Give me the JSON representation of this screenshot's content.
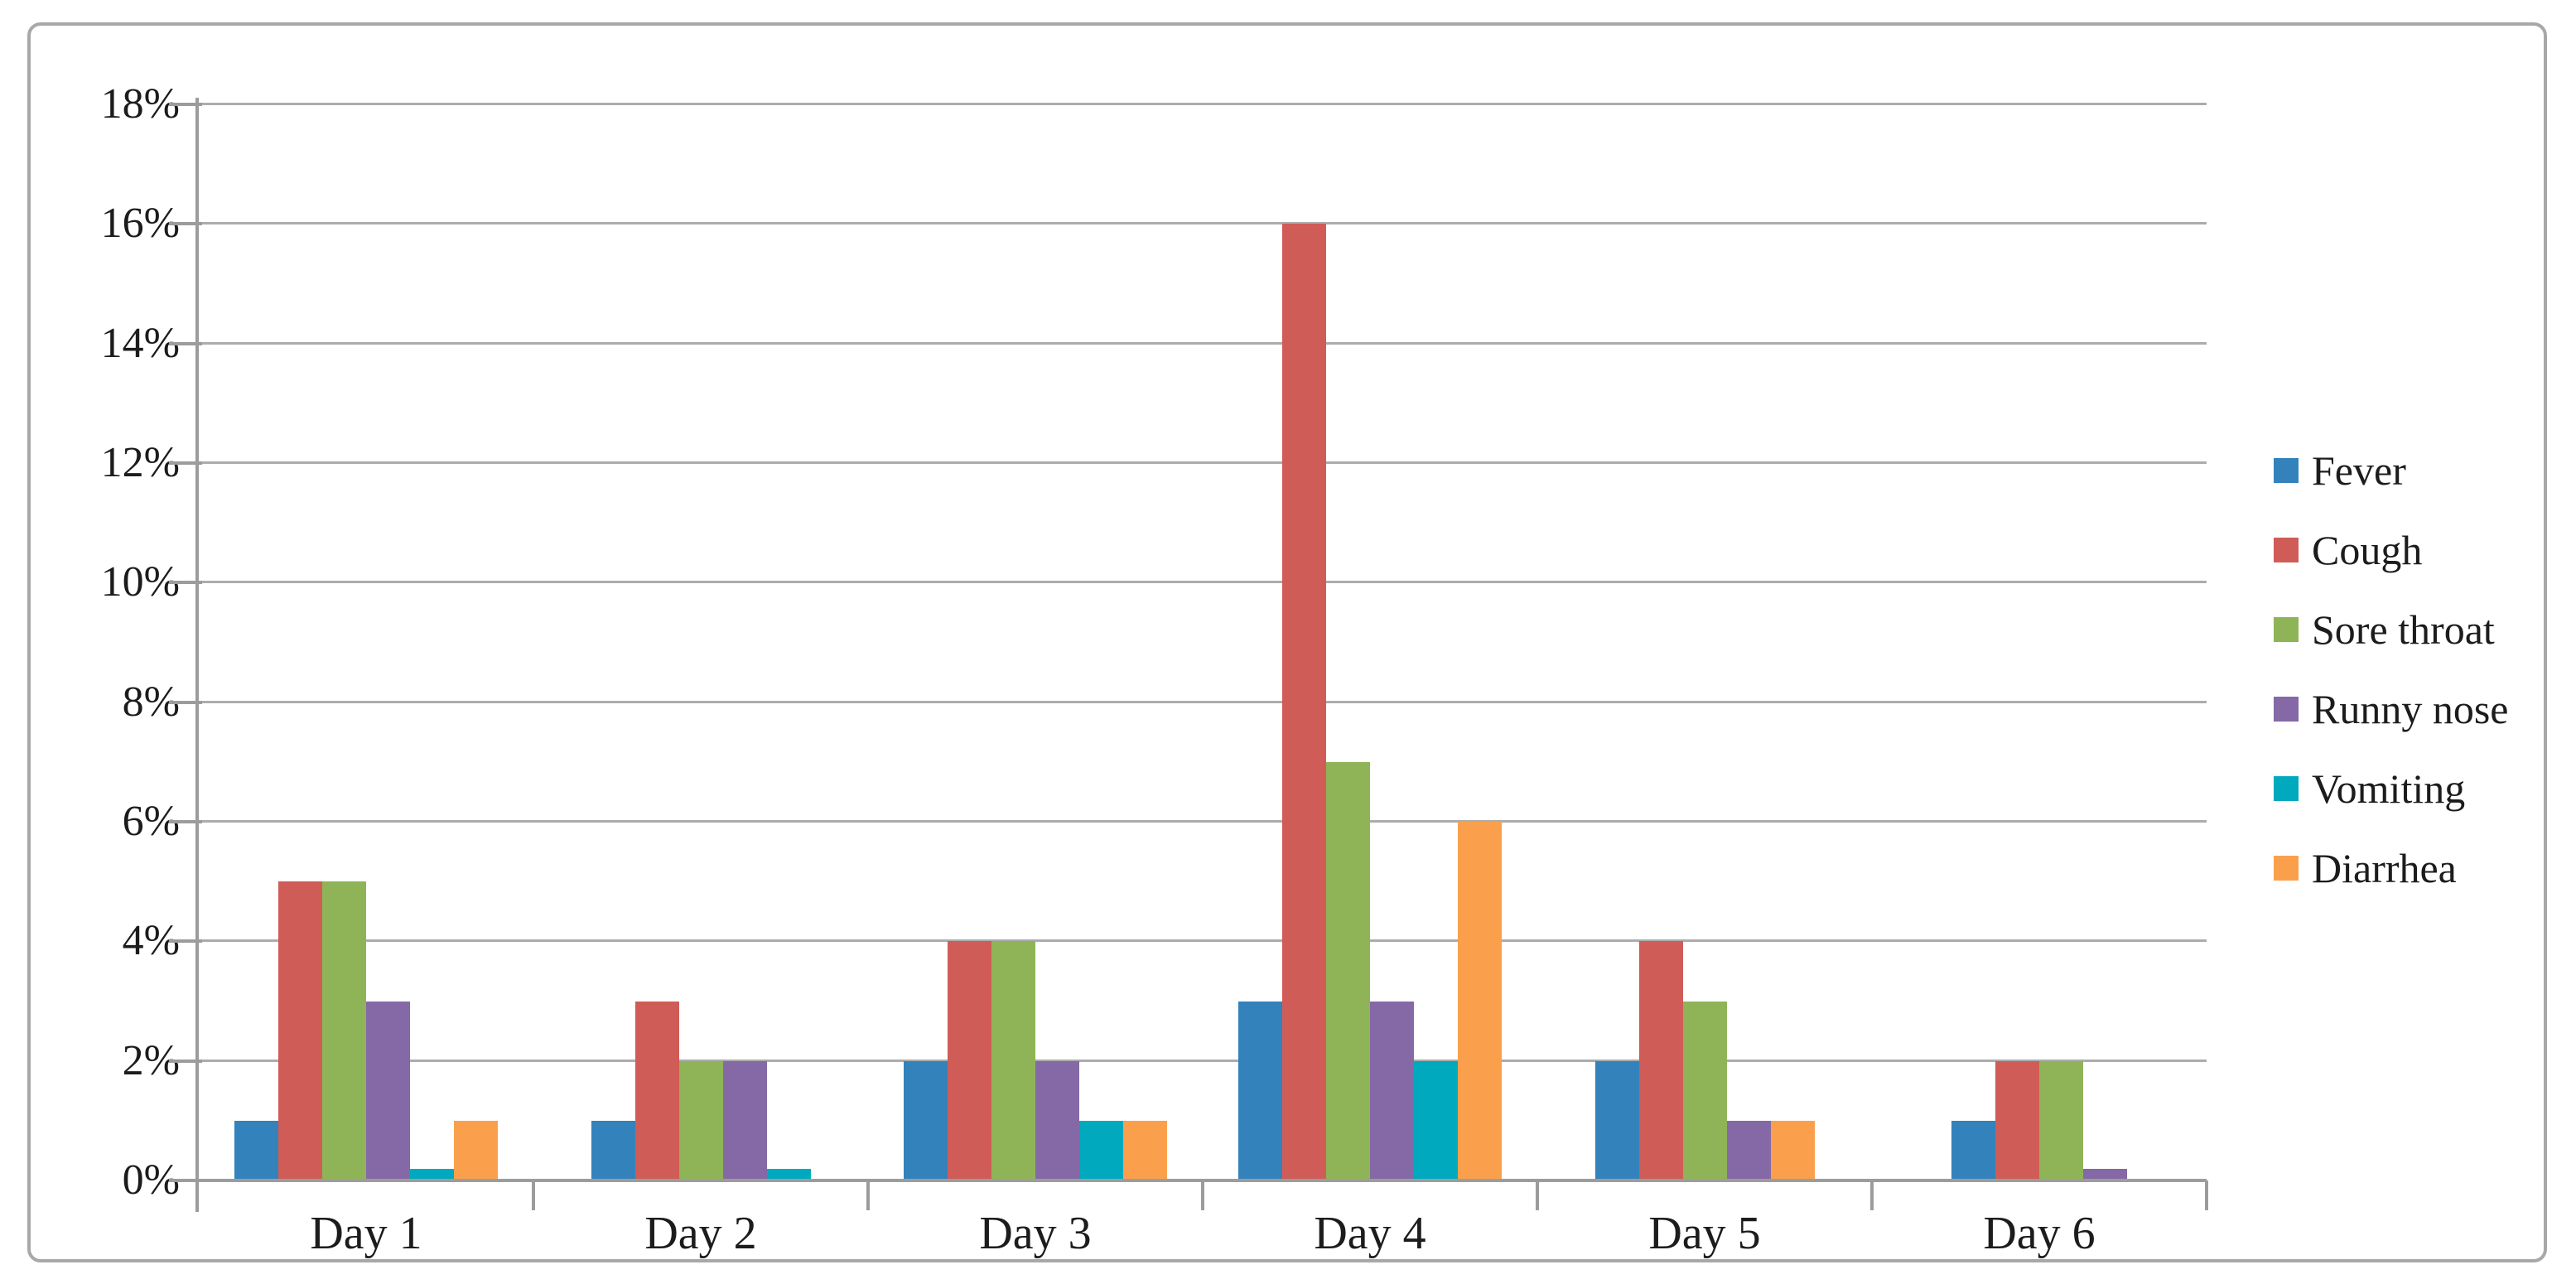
{
  "chart_data": {
    "type": "bar",
    "title": "",
    "xlabel": "",
    "ylabel": "",
    "categories": [
      "Day 1",
      "Day 2",
      "Day 3",
      "Day 4",
      "Day 5",
      "Day 6"
    ],
    "series": [
      {
        "name": "Fever",
        "color": "#3382bc",
        "values": [
          1,
          1,
          2,
          3,
          2,
          1
        ]
      },
      {
        "name": "Cough",
        "color": "#d05c57",
        "values": [
          5,
          3,
          4,
          16,
          4,
          2
        ]
      },
      {
        "name": "Sore throat",
        "color": "#8fb457",
        "values": [
          5,
          2,
          4,
          7,
          3,
          2
        ]
      },
      {
        "name": "Runny nose",
        "color": "#8569a6",
        "values": [
          3,
          2,
          2,
          3,
          1,
          0.2
        ]
      },
      {
        "name": "Vomiting",
        "color": "#00a9be",
        "values": [
          0.2,
          0.2,
          1,
          2,
          0,
          0
        ]
      },
      {
        "name": "Diarrhea",
        "color": "#faa04c",
        "values": [
          1,
          0,
          1,
          6,
          1,
          0
        ]
      }
    ],
    "ylim": [
      0,
      18
    ],
    "ytick_step": 2,
    "ytick_labels": [
      "0%",
      "2%",
      "4%",
      "6%",
      "8%",
      "10%",
      "12%",
      "14%",
      "16%",
      "18%"
    ],
    "grid": "horizontal gridlines every 2%",
    "legend_position": "right"
  },
  "colors": {
    "grid": "#acacac",
    "axis": "#9c9c9c",
    "frame_border": "#a8a8a8",
    "text": "#1c1c1c",
    "background": "#ffffff"
  }
}
